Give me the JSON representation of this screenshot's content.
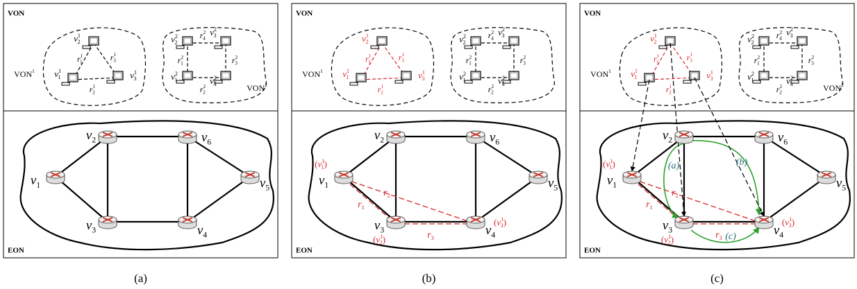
{
  "panels": [
    {
      "caption": "(a)",
      "von_title": "VON",
      "eon_title": "EON",
      "von1_color": "#000000",
      "von1": {
        "label": {
          "b": "VON",
          "sup": "1"
        },
        "nodes": [
          {
            "b": "v",
            "sub": "1",
            "sup": "1"
          },
          {
            "b": "v",
            "sub": "2",
            "sup": "1"
          },
          {
            "b": "v",
            "sub": "3",
            "sup": "1"
          }
        ],
        "links": [
          {
            "b": "r",
            "sub": "1",
            "sup": "1"
          },
          {
            "b": "r",
            "sub": "2",
            "sup": "1"
          },
          {
            "b": "r",
            "sub": "3",
            "sup": "1"
          }
        ]
      },
      "von2": {
        "label": {
          "b": "VON",
          "sup": "2"
        },
        "nodes": [
          {
            "b": "v",
            "sub": "1",
            "sup": "2"
          },
          {
            "b": "v",
            "sub": "2",
            "sup": "2"
          },
          {
            "b": "v",
            "sub": "3",
            "sup": "2"
          },
          {
            "b": "v",
            "sub": "4",
            "sup": "2"
          }
        ],
        "links": [
          {
            "b": "r",
            "sub": "1",
            "sup": "2"
          },
          {
            "b": "r",
            "sub": "2",
            "sup": "2"
          },
          {
            "b": "r",
            "sub": "3",
            "sup": "2"
          },
          {
            "b": "r",
            "sub": "4",
            "sup": "2"
          }
        ]
      },
      "eon_nodes": [
        {
          "b": "v",
          "sub": "1"
        },
        {
          "b": "v",
          "sub": "2"
        },
        {
          "b": "v",
          "sub": "3"
        },
        {
          "b": "v",
          "sub": "4"
        },
        {
          "b": "v",
          "sub": "5"
        },
        {
          "b": "v",
          "sub": "6"
        }
      ]
    },
    {
      "caption": "(b)",
      "von_title": "VON",
      "eon_title": "EON",
      "von1_color": "#d62728",
      "von1": {
        "label": {
          "b": "VON",
          "sup": "1"
        },
        "nodes": [
          {
            "b": "v",
            "sub": "1",
            "sup": "1"
          },
          {
            "b": "v",
            "sub": "2",
            "sup": "1"
          },
          {
            "b": "v",
            "sub": "3",
            "sup": "1"
          }
        ],
        "links": [
          {
            "b": "r",
            "sub": "1",
            "sup": "1"
          },
          {
            "b": "r",
            "sub": "2",
            "sup": "1"
          },
          {
            "b": "r",
            "sub": "3",
            "sup": "1"
          }
        ]
      },
      "von2": {
        "nodes": [
          {
            "b": "v",
            "sub": "1",
            "sup": "2"
          },
          {
            "b": "v",
            "sub": "2",
            "sup": "2"
          },
          {
            "b": "v",
            "sub": "3",
            "sup": "2"
          },
          {
            "b": "v",
            "sub": "4",
            "sup": "2"
          }
        ],
        "links": [
          {
            "b": "r",
            "sub": "1",
            "sup": "2"
          },
          {
            "b": "r",
            "sub": "2",
            "sup": "2"
          },
          {
            "b": "r",
            "sub": "3",
            "sup": "2"
          },
          {
            "b": "r",
            "sub": "4",
            "sup": "2"
          }
        ]
      },
      "eon_nodes": [
        {
          "b": "v",
          "sub": "1"
        },
        {
          "b": "v",
          "sub": "2"
        },
        {
          "b": "v",
          "sub": "3"
        },
        {
          "b": "v",
          "sub": "4"
        },
        {
          "b": "v",
          "sub": "5"
        },
        {
          "b": "v",
          "sub": "6"
        }
      ],
      "mappings": [
        {
          "open": "(",
          "b": "v",
          "sub": "1",
          "sup": "1",
          "close": ")"
        },
        {
          "open": "(",
          "b": "v",
          "sub": "2",
          "sup": "1",
          "close": ")"
        },
        {
          "open": "(",
          "b": "v",
          "sub": "3",
          "sup": "1",
          "close": ")"
        }
      ],
      "eon_link_labels": [
        {
          "b": "r",
          "sub": "1"
        },
        {
          "b": "r",
          "sub": "2"
        },
        {
          "b": "r",
          "sub": "3"
        }
      ]
    },
    {
      "caption": "(c)",
      "von_title": "VON",
      "eon_title": "EON",
      "von1_color": "#d62728",
      "von1": {
        "label": {
          "b": "VON",
          "sup": "1"
        },
        "nodes": [
          {
            "b": "v",
            "sub": "1",
            "sup": "1"
          },
          {
            "b": "v",
            "sub": "2",
            "sup": "1"
          },
          {
            "b": "v",
            "sub": "3",
            "sup": "1"
          }
        ],
        "links": [
          {
            "b": "r",
            "sub": "1",
            "sup": "1"
          },
          {
            "b": "r",
            "sub": "2",
            "sup": "1"
          },
          {
            "b": "r",
            "sub": "3",
            "sup": "1"
          }
        ]
      },
      "von2": {
        "label": {
          "b": "VON",
          "sup": "2"
        },
        "nodes": [
          {
            "b": "v",
            "sub": "1",
            "sup": "2"
          },
          {
            "b": "v",
            "sub": "2",
            "sup": "2"
          },
          {
            "b": "v",
            "sub": "3",
            "sup": "2"
          },
          {
            "b": "v",
            "sub": "4",
            "sup": "2"
          }
        ],
        "links": [
          {
            "b": "r",
            "sub": "1",
            "sup": "2"
          },
          {
            "b": "r",
            "sub": "2",
            "sup": "2"
          },
          {
            "b": "r",
            "sub": "3",
            "sup": "2"
          },
          {
            "b": "r",
            "sub": "4",
            "sup": "2"
          }
        ]
      },
      "eon_nodes": [
        {
          "b": "v",
          "sub": "1"
        },
        {
          "b": "v",
          "sub": "2"
        },
        {
          "b": "v",
          "sub": "3"
        },
        {
          "b": "v",
          "sub": "4"
        },
        {
          "b": "v",
          "sub": "5"
        },
        {
          "b": "v",
          "sub": "6"
        }
      ],
      "mappings": [
        {
          "open": "(",
          "b": "v",
          "sub": "1",
          "sup": "1",
          "close": ")"
        },
        {
          "open": "(",
          "b": "v",
          "sub": "2",
          "sup": "1",
          "close": ")"
        },
        {
          "open": "(",
          "b": "v",
          "sub": "3",
          "sup": "1",
          "close": ")"
        }
      ],
      "eon_link_labels": [
        {
          "b": "r",
          "sub": "1"
        },
        {
          "b": "r",
          "sub": "2"
        },
        {
          "b": "r",
          "sub": "3"
        }
      ],
      "routes": [
        "(a)",
        "(b)",
        "(c)"
      ]
    }
  ]
}
